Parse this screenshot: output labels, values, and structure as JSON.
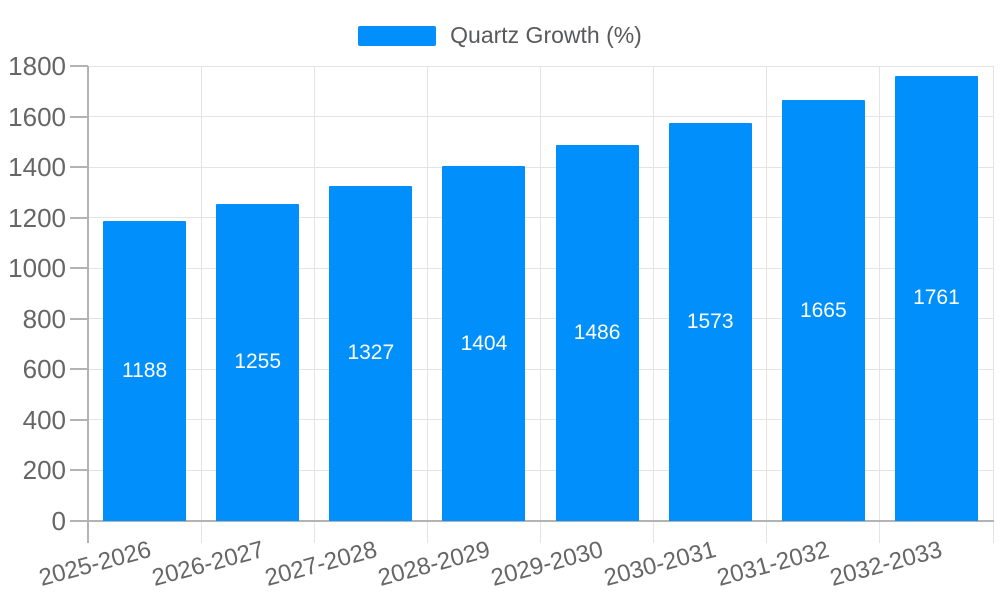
{
  "chart_data": {
    "type": "bar",
    "title": "Quartz Growth (%)",
    "legend": {
      "position": "top",
      "label": "Quartz Growth (%)"
    },
    "categories": [
      "2025-2026",
      "2026-2027",
      "2027-2028",
      "2028-2029",
      "2029-2030",
      "2030-2031",
      "2031-2032",
      "2032-2033"
    ],
    "series": [
      {
        "name": "Quartz Growth (%)",
        "values": [
          1188,
          1255,
          1327,
          1404,
          1486,
          1573,
          1665,
          1761
        ]
      }
    ],
    "xlabel": "",
    "ylabel": "",
    "ylim": [
      0,
      1800
    ],
    "ytick_step": 200,
    "ytick_labels": [
      "0",
      "200",
      "400",
      "600",
      "800",
      "1000",
      "1200",
      "1400",
      "1600",
      "1800"
    ],
    "grid": true,
    "data_labels_shown": true,
    "colors": {
      "bar": "#008FFB",
      "grid": "#e4e4e4",
      "axis": "#b3b3b3",
      "axis_label": "#666666",
      "legend_text": "#58595b",
      "data_label": "#ffffff",
      "background": "#ffffff"
    }
  }
}
